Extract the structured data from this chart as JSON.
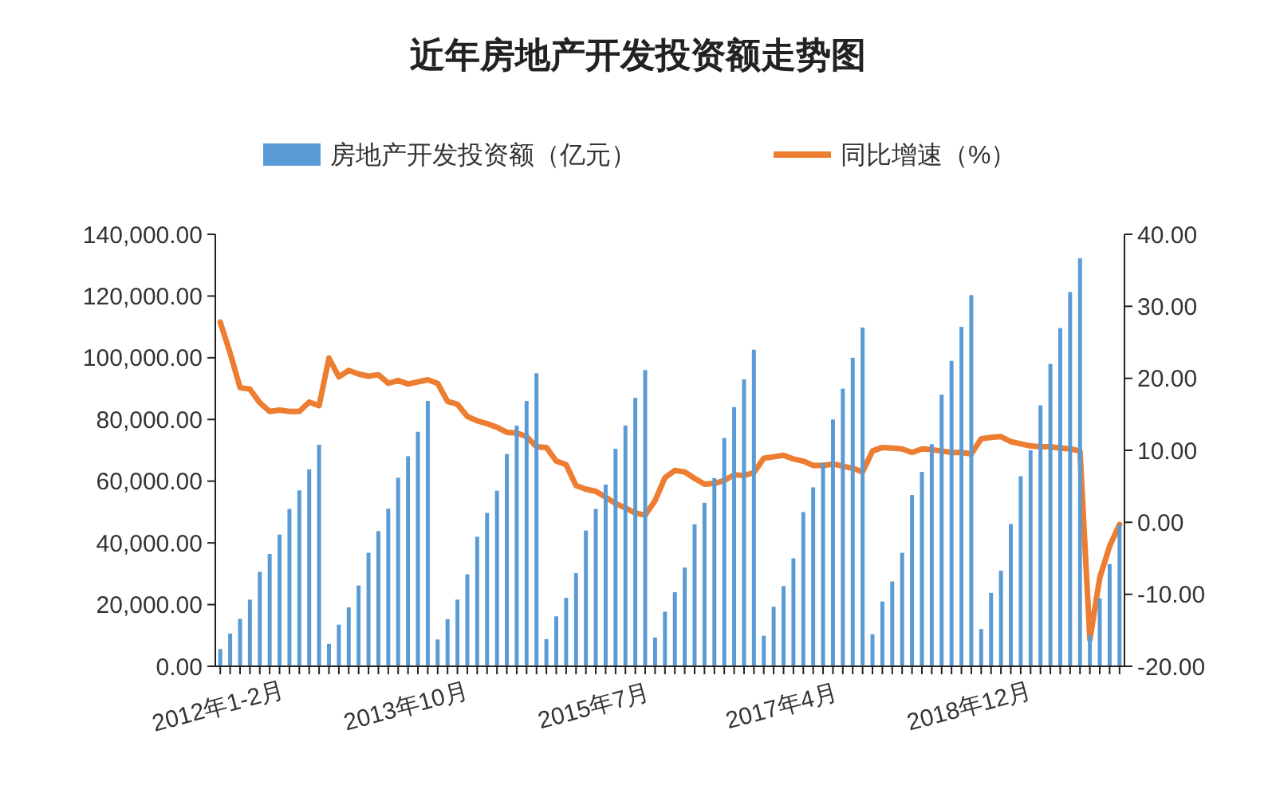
{
  "chart_data": {
    "type": "bar",
    "title": "近年房地产开发投资额走势图",
    "categories": [
      "2012年1-2月",
      null,
      null,
      null,
      null,
      null,
      null,
      null,
      null,
      null,
      null,
      null,
      null,
      null,
      null,
      null,
      null,
      null,
      null,
      "2013年10月",
      null,
      null,
      null,
      null,
      null,
      null,
      null,
      null,
      null,
      null,
      null,
      null,
      null,
      null,
      null,
      null,
      null,
      null,
      "2015年7月",
      null,
      null,
      null,
      null,
      null,
      null,
      null,
      null,
      null,
      null,
      null,
      null,
      null,
      null,
      null,
      null,
      null,
      null,
      "2017年4月",
      null,
      null,
      null,
      null,
      null,
      null,
      null,
      null,
      null,
      null,
      null,
      null,
      null,
      null,
      null,
      null,
      null,
      null,
      "2018年12月",
      null,
      null,
      null,
      null,
      null,
      null,
      null,
      null,
      null,
      null,
      null,
      null,
      null,
      null,
      null
    ],
    "series": [
      {
        "name": "房地产开发投资额（亿元）",
        "color": "#5b9bd5",
        "values": [
          5600,
          10600,
          15400,
          21600,
          30600,
          36400,
          42700,
          51000,
          57000,
          63800,
          71800,
          7300,
          13500,
          19100,
          26200,
          36800,
          43800,
          51100,
          61100,
          68100,
          76000,
          86000,
          8700,
          15300,
          21600,
          29800,
          42000,
          49700,
          56900,
          68800,
          78000,
          86000,
          95000,
          8800,
          16200,
          22200,
          30200,
          44000,
          51000,
          58900,
          70500,
          78000,
          87000,
          96000,
          9300,
          17700,
          24000,
          32000,
          46000,
          53000,
          61000,
          74000,
          84000,
          93000,
          102600,
          9900,
          19300,
          26000,
          35000,
          50000,
          58000,
          66000,
          80000,
          90000,
          100000,
          109800,
          10400,
          21000,
          27500,
          36800,
          55500,
          63000,
          72000,
          88000,
          99000,
          110000,
          120300,
          12100,
          23800,
          31000,
          46100,
          61600,
          70000,
          84600,
          98000,
          109600,
          121300,
          132200,
          10100,
          22000,
          33100,
          45900
        ]
      },
      {
        "name": "同比增速（%）",
        "type": "line",
        "axis": "y2",
        "color": "#ed7d31",
        "values": [
          27.8,
          23.5,
          18.7,
          18.5,
          16.6,
          15.4,
          15.6,
          15.4,
          15.4,
          16.7,
          16.2,
          22.8,
          20.2,
          21.1,
          20.6,
          20.3,
          20.5,
          19.3,
          19.7,
          19.2,
          19.5,
          19.8,
          19.3,
          16.8,
          16.4,
          14.7,
          14.1,
          13.7,
          13.2,
          12.5,
          12.4,
          11.9,
          10.5,
          10.4,
          8.5,
          8.0,
          5.1,
          4.6,
          4.3,
          3.5,
          2.6,
          2.0,
          1.3,
          1.0,
          3.0,
          6.2,
          7.2,
          7.0,
          6.1,
          5.3,
          5.4,
          5.8,
          6.6,
          6.5,
          6.9,
          8.9,
          9.1,
          9.3,
          8.8,
          8.5,
          7.9,
          7.9,
          8.1,
          7.8,
          7.5,
          7.0,
          9.9,
          10.4,
          10.3,
          10.2,
          9.7,
          10.2,
          10.1,
          9.9,
          9.7,
          9.7,
          9.5,
          11.6,
          11.8,
          11.9,
          11.2,
          10.9,
          10.6,
          10.5,
          10.5,
          10.3,
          10.2,
          9.9,
          -16.3,
          -7.7,
          -3.3,
          -0.3
        ]
      }
    ],
    "ylim": [
      0,
      140000
    ],
    "yticks": [
      {
        "value": 0,
        "label": "0.00"
      },
      {
        "value": 20000,
        "label": "20,000.00"
      },
      {
        "value": 40000,
        "label": "40,000.00"
      },
      {
        "value": 60000,
        "label": "60,000.00"
      },
      {
        "value": 80000,
        "label": "80,000.00"
      },
      {
        "value": 100000,
        "label": "100,000.00"
      },
      {
        "value": 120000,
        "label": "120,000.00"
      },
      {
        "value": 140000,
        "label": "140,000.00"
      }
    ],
    "y2lim": [
      -20,
      40
    ],
    "y2ticks": [
      {
        "value": -20,
        "label": "-20.00"
      },
      {
        "value": -10,
        "label": "-10.00"
      },
      {
        "value": 0,
        "label": "0.00"
      },
      {
        "value": 10,
        "label": "10.00"
      },
      {
        "value": 20,
        "label": "20.00"
      },
      {
        "value": 30,
        "label": "30.00"
      },
      {
        "value": 40,
        "label": "40.00"
      }
    ],
    "grid": false,
    "legend": "top"
  }
}
